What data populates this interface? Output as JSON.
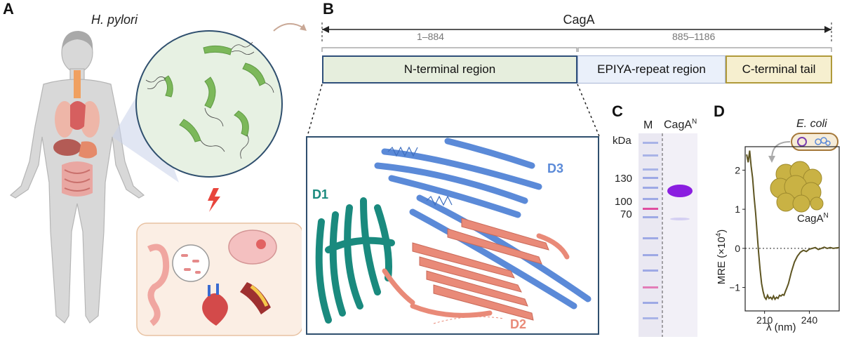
{
  "panels": {
    "a": "A",
    "b": "B",
    "c": "C",
    "d": "D"
  },
  "panel_a": {
    "organism": "H. pylori"
  },
  "panel_b": {
    "protein": "CagA",
    "range_n": "1–884",
    "range_c": "885–1186",
    "regions": [
      "N-terminal region",
      "EPIYA-repeat region",
      "C-terminal tail"
    ],
    "domains": [
      "D1",
      "D2",
      "D3"
    ],
    "colors": {
      "n_fill": "#e6eedd",
      "n_border": "#2f4f7a",
      "epiya_fill": "#eaf0fa",
      "epiya_border": "#aab8d6",
      "c_fill": "#f6efcf",
      "c_border": "#b09a3a",
      "d1": "#1a8a7e",
      "d2": "#e98a78",
      "d3": "#5b8ad8"
    }
  },
  "panel_c": {
    "lane_m": "M",
    "lane_sample": "CagA",
    "lane_sample_sup": "N",
    "unit": "kDa",
    "markers": [
      "130",
      "100",
      "70"
    ]
  },
  "panel_d": {
    "organism": "E. coli",
    "protein": "CagA",
    "protein_sup": "N",
    "ylabel": "MRE (×10",
    "ylabel_sup": "4",
    "ylabel_tail": ")",
    "xlabel": "λ (nm)"
  },
  "chart_data": {
    "type": "line",
    "title": "",
    "xlabel": "λ (nm)",
    "ylabel": "MRE (×10^4)",
    "xlim": [
      197,
      260
    ],
    "ylim": [
      -1.6,
      2.6
    ],
    "xticks": [
      210,
      240
    ],
    "yticks": [
      2,
      1,
      0,
      -1
    ],
    "reference_line": 0,
    "series": [
      {
        "name": "CagA N",
        "x": [
          198,
          199,
          200,
          201,
          202,
          203,
          204,
          205,
          206,
          207,
          208,
          209,
          210,
          211,
          212,
          213,
          214,
          215,
          216,
          217,
          218,
          219,
          220,
          221,
          222,
          223,
          224,
          225,
          226,
          228,
          230,
          232,
          234,
          236,
          238,
          240,
          242,
          244,
          246,
          248,
          250,
          252,
          254,
          256,
          258,
          260
        ],
        "y": [
          2.4,
          2.2,
          2.5,
          2.1,
          1.8,
          1.3,
          0.9,
          0.4,
          -0.1,
          -0.55,
          -0.9,
          -1.1,
          -1.25,
          -1.3,
          -1.2,
          -1.28,
          -1.25,
          -1.3,
          -1.22,
          -1.3,
          -1.25,
          -1.28,
          -1.2,
          -1.22,
          -1.18,
          -1.2,
          -1.1,
          -1.0,
          -0.9,
          -0.6,
          -0.35,
          -0.2,
          -0.1,
          -0.05,
          -0.08,
          -0.02,
          0.0,
          0.02,
          -0.03,
          0.0,
          0.03,
          0.0,
          0.02,
          0.0,
          0.01,
          0.02
        ]
      }
    ]
  }
}
